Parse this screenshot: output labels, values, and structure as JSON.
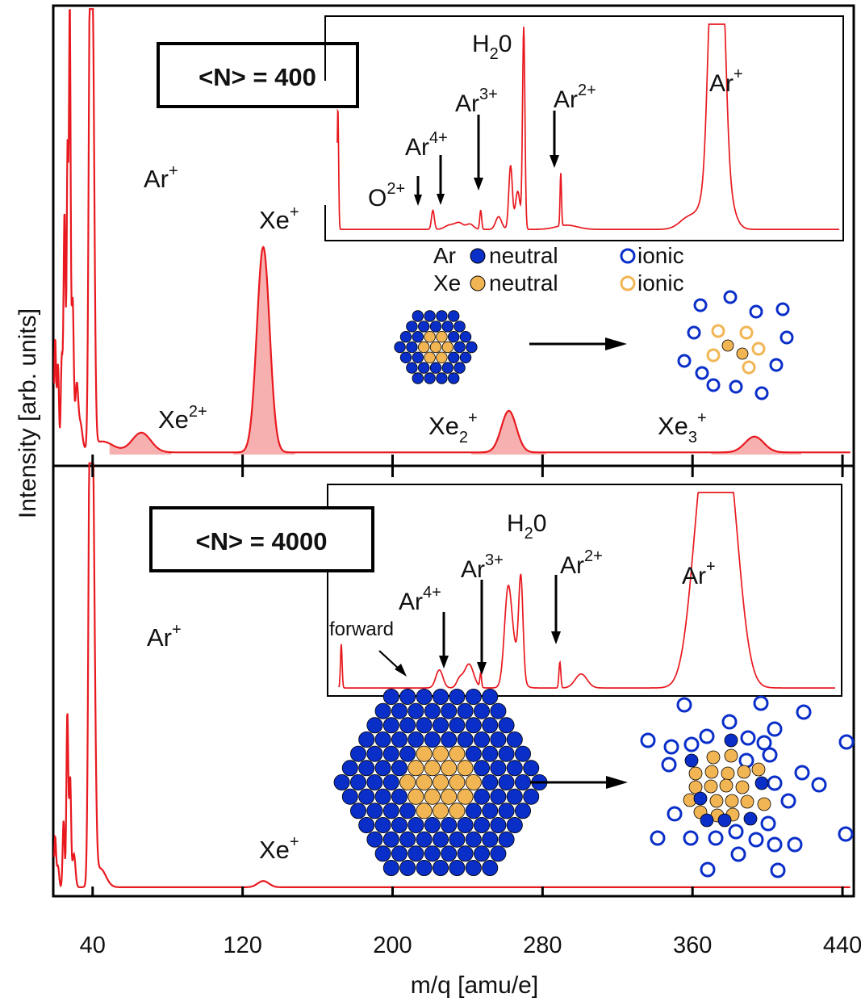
{
  "chart_data": {
    "type": "line",
    "xlabel": "m/q [amu/e]",
    "ylabel": "Intensity [arb. units]",
    "xlim": [
      19,
      446
    ],
    "xticks": [
      40,
      120,
      200,
      280,
      360,
      440
    ],
    "grid": false,
    "panels": [
      {
        "id": "top",
        "size_label": "<N> = 400",
        "peaks": [
          {
            "x": 20,
            "h": 0.26,
            "w": 0.5
          },
          {
            "x": 21.5,
            "h": 0.2,
            "w": 0.5
          },
          {
            "x": 23.5,
            "h": 0.21,
            "w": 0.5
          },
          {
            "x": 25,
            "h": 0.55,
            "w": 0.55
          },
          {
            "x": 26.6,
            "h": 0.68,
            "w": 0.45
          },
          {
            "x": 27.8,
            "h": 1.0,
            "w": 0.45
          },
          {
            "x": 29.3,
            "h": 0.35,
            "w": 0.6
          },
          {
            "x": 31.5,
            "h": 0.15,
            "w": 0.8
          },
          {
            "x": 33.5,
            "h": 0.06,
            "w": 1.0
          },
          {
            "x": 38.5,
            "h": 0.9,
            "w": 0.7
          },
          {
            "x": 40,
            "h": 0.98,
            "w": 0.9
          },
          {
            "x": 45,
            "h": 0.025,
            "w": 6
          },
          {
            "x": 66,
            "h": 0.045,
            "w": 5
          },
          {
            "x": 131,
            "h": 0.47,
            "w": 3.4
          },
          {
            "x": 262,
            "h": 0.095,
            "w": 4.0
          },
          {
            "x": 393,
            "h": 0.036,
            "w": 5.0
          }
        ],
        "shaded": [
          [
            49,
            82
          ],
          [
            115,
            148
          ],
          [
            242,
            282
          ],
          [
            370,
            418
          ]
        ],
        "baseline": 0.005,
        "labels": [
          {
            "base": "Ar",
            "sup": "+",
            "sub": ""
          },
          {
            "base": "Xe",
            "sup": "+",
            "sub": ""
          },
          {
            "base": "Xe",
            "sup": "2+",
            "sub": ""
          },
          {
            "base": "Xe",
            "sup": "+",
            "sub": "2"
          },
          {
            "base": "Xe",
            "sup": "+",
            "sub": "3"
          }
        ],
        "inset": {
          "xlim": [
            8,
            50
          ],
          "peaks": [
            {
              "x": 8.05,
              "h": 0.58,
              "w": 0.06
            },
            {
              "x": 16,
              "h": 0.09,
              "w": 0.12
            },
            {
              "x": 17.4,
              "h": 0.02,
              "w": 0.4
            },
            {
              "x": 18.2,
              "h": 0.03,
              "w": 0.35
            },
            {
              "x": 19.1,
              "h": 0.025,
              "w": 0.3
            },
            {
              "x": 20,
              "h": 0.09,
              "w": 0.08
            },
            {
              "x": 21.5,
              "h": 0.06,
              "w": 0.25
            },
            {
              "x": 22.5,
              "h": 0.3,
              "w": 0.15
            },
            {
              "x": 23.6,
              "h": 0.95,
              "w": 0.1
            },
            {
              "x": 23.1,
              "h": 0.18,
              "w": 0.2
            },
            {
              "x": 26.7,
              "h": 0.25,
              "w": 0.06
            },
            {
              "x": 27.2,
              "h": 0.02,
              "w": 0.9
            },
            {
              "x": 37.5,
              "h": 0.06,
              "w": 0.8
            },
            {
              "x": 39.3,
              "h": 0.78,
              "w": 0.32
            },
            {
              "x": 40.2,
              "h": 0.79,
              "w": 0.32
            },
            {
              "x": 39.8,
              "h": 0.5,
              "w": 0.8
            }
          ],
          "baseline": 0.03,
          "labels": [
            {
              "base": "H",
              "sub": "2",
              "tail": "0"
            },
            {
              "base": "Ar",
              "sup": "3+"
            },
            {
              "base": "Ar",
              "sup": "2+"
            },
            {
              "base": "Ar",
              "sup": "4+"
            },
            {
              "base": "O",
              "sup": "2+"
            },
            {
              "base": "Ar",
              "sup": "+"
            }
          ]
        },
        "legend": {
          "rows": [
            {
              "element": "Ar",
              "neutral": "neutral",
              "ionic": "ionic",
              "color": "#0a2ec8"
            },
            {
              "element": "Xe",
              "neutral": "neutral",
              "ionic": "ionic",
              "color": "#f2b554"
            }
          ]
        }
      },
      {
        "id": "bottom",
        "size_label": "<N> = 4000",
        "peaks": [
          {
            "x": 20,
            "h": 0.12,
            "w": 0.5
          },
          {
            "x": 21.5,
            "h": 0.05,
            "w": 0.6
          },
          {
            "x": 24.5,
            "h": 0.16,
            "w": 0.5
          },
          {
            "x": 26.5,
            "h": 0.42,
            "w": 0.5
          },
          {
            "x": 28,
            "h": 0.26,
            "w": 0.5
          },
          {
            "x": 30,
            "h": 0.08,
            "w": 0.8
          },
          {
            "x": 38.5,
            "h": 0.9,
            "w": 0.8
          },
          {
            "x": 40,
            "h": 0.99,
            "w": 1.1
          },
          {
            "x": 44,
            "h": 0.045,
            "w": 3
          },
          {
            "x": 131,
            "h": 0.015,
            "w": 3
          }
        ],
        "baseline": 0.004,
        "labels": [
          {
            "base": "Ar",
            "sup": "+"
          },
          {
            "base": "Xe",
            "sup": "+"
          }
        ],
        "inset": {
          "xlim": [
            8,
            50
          ],
          "peaks": [
            {
              "x": 8.2,
              "h": 0.22,
              "w": 0.07
            },
            {
              "x": 16.5,
              "h": 0.09,
              "w": 0.3
            },
            {
              "x": 18.2,
              "h": 0.04,
              "w": 0.25
            },
            {
              "x": 19.0,
              "h": 0.12,
              "w": 0.4
            },
            {
              "x": 20,
              "h": 0.07,
              "w": 0.07
            },
            {
              "x": 22.3,
              "h": 0.4,
              "w": 0.3
            },
            {
              "x": 23.4,
              "h": 0.48,
              "w": 0.18
            },
            {
              "x": 22.8,
              "h": 0.18,
              "w": 0.5
            },
            {
              "x": 26.7,
              "h": 0.13,
              "w": 0.08
            },
            {
              "x": 28.5,
              "h": 0.07,
              "w": 0.5
            },
            {
              "x": 38.8,
              "h": 0.84,
              "w": 1.0
            },
            {
              "x": 41.0,
              "h": 0.84,
              "w": 1.0
            },
            {
              "x": 39.9,
              "h": 0.55,
              "w": 1.0
            }
          ],
          "baseline": 0.02,
          "labels": [
            {
              "base": "H",
              "sub": "2",
              "tail": "0"
            },
            {
              "base": "Ar",
              "sup": "3+"
            },
            {
              "base": "Ar",
              "sup": "2+"
            },
            {
              "base": "Ar",
              "sup": "4+"
            },
            {
              "base": "Ar",
              "sup": "+"
            },
            {
              "base": "forward"
            }
          ]
        }
      }
    ]
  }
}
